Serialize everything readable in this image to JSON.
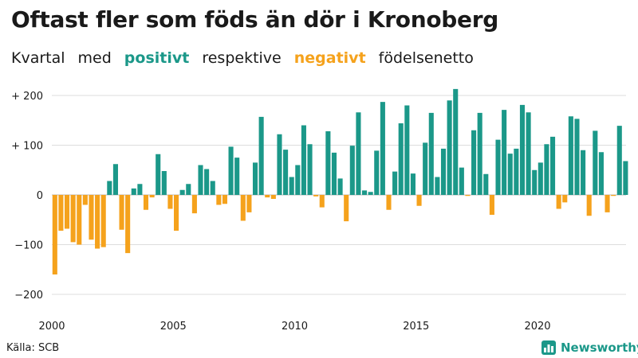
{
  "title": "Oftast fler som föds än dör i Kronoberg",
  "subtitle": {
    "w1": "Kvartal",
    "w2": "med",
    "w3": "positivt",
    "w4": "respektive",
    "w5": "negativt",
    "w6": "födelsenetto"
  },
  "source": "Källa: SCB",
  "logo": "Newsworthy",
  "colors": {
    "positive": "#1b9889",
    "negative": "#f5a21c",
    "grid": "#dddddd",
    "text": "#1a1a1a"
  },
  "chart_data": {
    "type": "bar",
    "title": "Oftast fler som föds än dör i Kronoberg",
    "xlabel": "",
    "ylabel": "",
    "ylim": [
      -200,
      240
    ],
    "xlim": [
      2000,
      2024
    ],
    "x_ticks": [
      2000,
      2005,
      2010,
      2015,
      2020
    ],
    "y_ticks": [
      200,
      100,
      0,
      -100,
      -200
    ],
    "y_tick_labels": [
      "+ 200",
      "+ 100",
      "0",
      "−100",
      "−200"
    ],
    "grid": true,
    "start_year": 2000,
    "periods_per_year": 4,
    "values": [
      -160,
      -72,
      -68,
      -95,
      -100,
      -20,
      -90,
      -108,
      -105,
      28,
      62,
      -70,
      -117,
      13,
      22,
      -30,
      -5,
      82,
      48,
      -28,
      -72,
      10,
      22,
      -37,
      60,
      52,
      28,
      -20,
      -18,
      97,
      75,
      -52,
      -35,
      65,
      157,
      -5,
      -8,
      122,
      91,
      36,
      60,
      140,
      102,
      -3,
      -25,
      128,
      85,
      33,
      -53,
      99,
      166,
      9,
      6,
      89,
      187,
      -30,
      47,
      144,
      180,
      43,
      -22,
      105,
      165,
      36,
      93,
      190,
      213,
      55,
      -2,
      130,
      165,
      42,
      -40,
      111,
      171,
      83,
      93,
      181,
      166,
      50,
      65,
      102,
      117,
      -28,
      -15,
      158,
      153,
      90,
      -42,
      129,
      86,
      -35,
      -2,
      139,
      68
    ]
  }
}
